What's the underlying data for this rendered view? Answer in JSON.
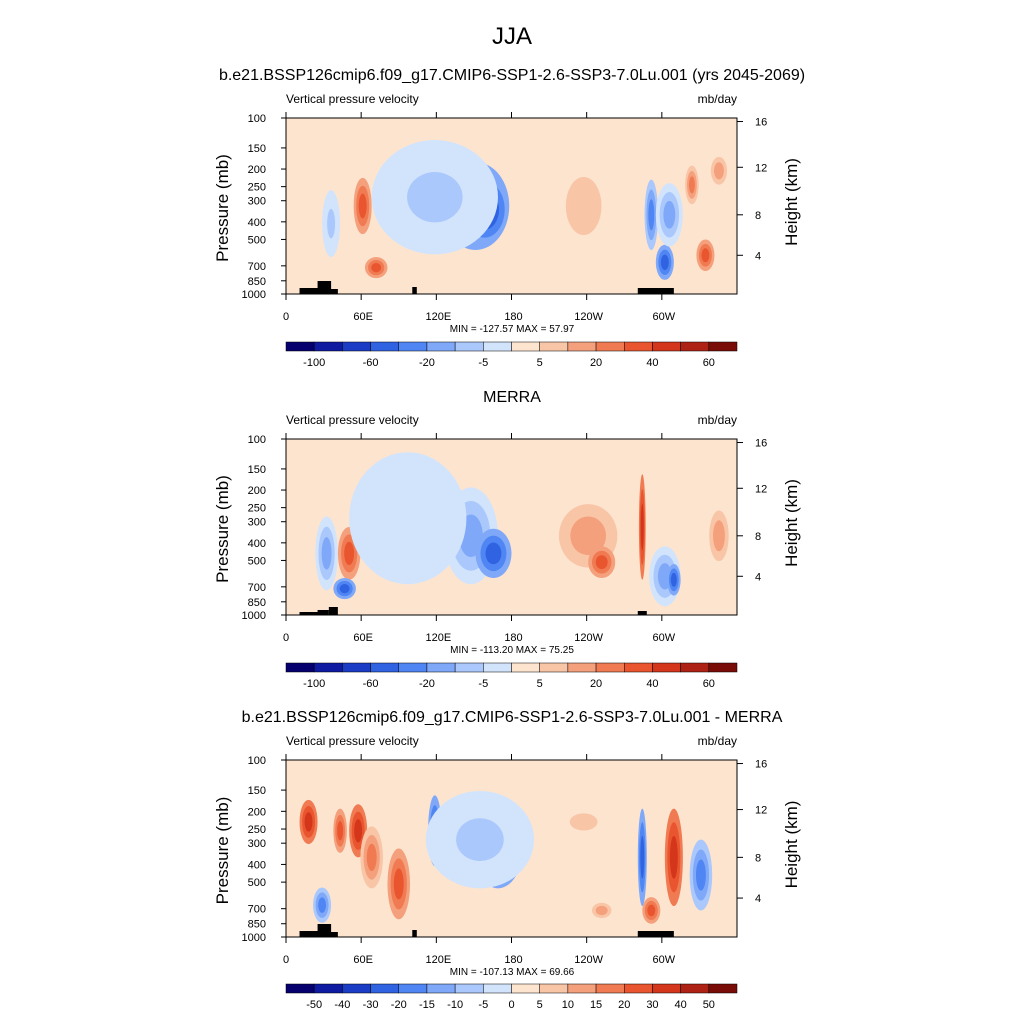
{
  "title": "JJA",
  "chart_data": [
    {
      "type": "heatmap",
      "title": "b.e21.BSSP126cmip6.f09_g17.CMIP6-SSP1-2.6-SSP3-7.0Lu.001 (yrs 2045-2069)",
      "left_label": "Vertical pressure velocity",
      "right_label": "mb/day",
      "ylabel": "Pressure (mb)",
      "ylabel_right": "Height (km)",
      "x_ticks": [
        "0",
        "60E",
        "120E",
        "180",
        "120W",
        "60W"
      ],
      "y_ticks": [
        "100",
        "150",
        "200",
        "250",
        "300",
        "400",
        "500",
        "700",
        "850",
        "1000"
      ],
      "y_ticks_right": [
        "16",
        "12",
        "8",
        "4"
      ],
      "stats": "MIN = -127.57  MAX =  57.97",
      "colorbar_labels": [
        "-100",
        "-60",
        "-20",
        "-5",
        "5",
        "20",
        "40",
        "60"
      ],
      "colorbar_colors": [
        "#05006e",
        "#0e1ba0",
        "#1b3cc4",
        "#2f63e2",
        "#4f86f3",
        "#7fa9f8",
        "#aac8fb",
        "#d2e4fc",
        "#fde4cf",
        "#f9c5a7",
        "#f5a07c",
        "#f07a52",
        "#e9552e",
        "#d4361b",
        "#ad2214",
        "#7a0c08"
      ],
      "features": [
        {
          "xf": 0.1,
          "yf": 0.6,
          "w": 0.04,
          "h": 0.38,
          "c": 6
        },
        {
          "xf": 0.17,
          "yf": 0.5,
          "w": 0.04,
          "h": 0.32,
          "c": 12
        },
        {
          "xf": 0.2,
          "yf": 0.85,
          "w": 0.05,
          "h": 0.12,
          "c": 12
        },
        {
          "xf": 0.3,
          "yf": 0.4,
          "w": 0.14,
          "h": 0.5,
          "c": 3
        },
        {
          "xf": 0.31,
          "yf": 0.35,
          "w": 0.08,
          "h": 0.28,
          "c": 2
        },
        {
          "xf": 0.42,
          "yf": 0.5,
          "w": 0.15,
          "h": 0.5,
          "c": 3
        },
        {
          "xf": 0.44,
          "yf": 0.52,
          "w": 0.09,
          "h": 0.32,
          "c": 2
        },
        {
          "xf": 0.33,
          "yf": 0.45,
          "w": 0.28,
          "h": 0.65,
          "c": 6
        },
        {
          "xf": 0.66,
          "yf": 0.55,
          "w": 0.12,
          "h": 0.58,
          "c": 12
        },
        {
          "xf": 0.66,
          "yf": 0.5,
          "w": 0.18,
          "h": 0.75,
          "c": 9
        },
        {
          "xf": 0.81,
          "yf": 0.55,
          "w": 0.03,
          "h": 0.4,
          "c": 4
        },
        {
          "xf": 0.84,
          "yf": 0.82,
          "w": 0.04,
          "h": 0.2,
          "c": 3
        },
        {
          "xf": 0.85,
          "yf": 0.55,
          "w": 0.06,
          "h": 0.36,
          "c": 5
        },
        {
          "xf": 0.9,
          "yf": 0.38,
          "w": 0.03,
          "h": 0.22,
          "c": 11
        },
        {
          "xf": 0.96,
          "yf": 0.3,
          "w": 0.05,
          "h": 0.22,
          "c": 10
        },
        {
          "xf": 0.93,
          "yf": 0.78,
          "w": 0.04,
          "h": 0.18,
          "c": 12
        }
      ]
    },
    {
      "type": "heatmap",
      "title": "MERRA",
      "left_label": "Vertical pressure velocity",
      "right_label": "mb/day",
      "ylabel": "Pressure (mb)",
      "ylabel_right": "Height (km)",
      "x_ticks": [
        "0",
        "60E",
        "120E",
        "180",
        "120W",
        "60W"
      ],
      "y_ticks": [
        "100",
        "150",
        "200",
        "250",
        "300",
        "400",
        "500",
        "700",
        "850",
        "1000"
      ],
      "y_ticks_right": [
        "16",
        "12",
        "8",
        "4"
      ],
      "stats": "MIN = -113.20  MAX =  75.25",
      "colorbar_labels": [
        "-100",
        "-60",
        "-20",
        "-5",
        "5",
        "20",
        "40",
        "60"
      ],
      "colorbar_colors": [
        "#05006e",
        "#0e1ba0",
        "#1b3cc4",
        "#2f63e2",
        "#4f86f3",
        "#7fa9f8",
        "#aac8fb",
        "#d2e4fc",
        "#fde4cf",
        "#f9c5a7",
        "#f5a07c",
        "#f07a52",
        "#e9552e",
        "#d4361b",
        "#ad2214",
        "#7a0c08"
      ],
      "features": [
        {
          "xf": 0.09,
          "yf": 0.65,
          "w": 0.05,
          "h": 0.42,
          "c": 5
        },
        {
          "xf": 0.14,
          "yf": 0.65,
          "w": 0.05,
          "h": 0.3,
          "c": 12
        },
        {
          "xf": 0.13,
          "yf": 0.85,
          "w": 0.05,
          "h": 0.12,
          "c": 3
        },
        {
          "xf": 0.28,
          "yf": 0.45,
          "w": 0.18,
          "h": 0.55,
          "c": 6
        },
        {
          "xf": 0.22,
          "yf": 0.4,
          "w": 0.08,
          "h": 0.3,
          "c": 3
        },
        {
          "xf": 0.41,
          "yf": 0.55,
          "w": 0.12,
          "h": 0.55,
          "c": 5
        },
        {
          "xf": 0.46,
          "yf": 0.65,
          "w": 0.08,
          "h": 0.28,
          "c": 3
        },
        {
          "xf": 0.27,
          "yf": 0.45,
          "w": 0.26,
          "h": 0.75,
          "c": 7
        },
        {
          "xf": 0.67,
          "yf": 0.55,
          "w": 0.18,
          "h": 0.5,
          "c": 10
        },
        {
          "xf": 0.7,
          "yf": 0.7,
          "w": 0.06,
          "h": 0.18,
          "c": 12
        },
        {
          "xf": 0.79,
          "yf": 0.5,
          "w": 0.015,
          "h": 0.6,
          "c": 13
        },
        {
          "xf": 0.84,
          "yf": 0.78,
          "w": 0.07,
          "h": 0.34,
          "c": 5
        },
        {
          "xf": 0.86,
          "yf": 0.8,
          "w": 0.03,
          "h": 0.18,
          "c": 3
        },
        {
          "xf": 0.96,
          "yf": 0.55,
          "w": 0.06,
          "h": 0.4,
          "c": 10
        }
      ]
    },
    {
      "type": "heatmap",
      "title": "b.e21.BSSP126cmip6.f09_g17.CMIP6-SSP1-2.6-SSP3-7.0Lu.001 - MERRA",
      "left_label": "Vertical pressure velocity",
      "right_label": "mb/day",
      "ylabel": "Pressure (mb)",
      "ylabel_right": "Height (km)",
      "x_ticks": [
        "0",
        "60E",
        "120E",
        "180",
        "120W",
        "60W"
      ],
      "y_ticks": [
        "100",
        "150",
        "200",
        "250",
        "300",
        "400",
        "500",
        "700",
        "850",
        "1000"
      ],
      "y_ticks_right": [
        "16",
        "12",
        "8",
        "4"
      ],
      "stats": "MIN = -107.13  MAX =  69.66",
      "colorbar_labels": [
        "-50",
        "-40",
        "-30",
        "-20",
        "-15",
        "-10",
        "-5",
        "0",
        "5",
        "10",
        "15",
        "20",
        "30",
        "40",
        "50"
      ],
      "colorbar_colors": [
        "#05006e",
        "#0e1ba0",
        "#1b3cc4",
        "#2f63e2",
        "#4f86f3",
        "#7fa9f8",
        "#aac8fb",
        "#d2e4fc",
        "#fde4cf",
        "#f9c5a7",
        "#f5a07c",
        "#f07a52",
        "#e9552e",
        "#d4361b",
        "#ad2214",
        "#7a0c08"
      ],
      "features": [
        {
          "xf": 0.05,
          "yf": 0.35,
          "w": 0.04,
          "h": 0.25,
          "c": 13
        },
        {
          "xf": 0.08,
          "yf": 0.82,
          "w": 0.04,
          "h": 0.2,
          "c": 4
        },
        {
          "xf": 0.12,
          "yf": 0.4,
          "w": 0.03,
          "h": 0.25,
          "c": 12
        },
        {
          "xf": 0.16,
          "yf": 0.4,
          "w": 0.04,
          "h": 0.3,
          "c": 13
        },
        {
          "xf": 0.19,
          "yf": 0.55,
          "w": 0.05,
          "h": 0.35,
          "c": 11
        },
        {
          "xf": 0.25,
          "yf": 0.7,
          "w": 0.05,
          "h": 0.4,
          "c": 12
        },
        {
          "xf": 0.33,
          "yf": 0.4,
          "w": 0.03,
          "h": 0.4,
          "c": 3
        },
        {
          "xf": 0.4,
          "yf": 0.4,
          "w": 0.04,
          "h": 0.35,
          "c": 3
        },
        {
          "xf": 0.47,
          "yf": 0.5,
          "w": 0.11,
          "h": 0.45,
          "c": 3
        },
        {
          "xf": 0.43,
          "yf": 0.45,
          "w": 0.24,
          "h": 0.55,
          "c": 6
        },
        {
          "xf": 0.66,
          "yf": 0.35,
          "w": 0.14,
          "h": 0.22,
          "c": 9
        },
        {
          "xf": 0.79,
          "yf": 0.55,
          "w": 0.02,
          "h": 0.55,
          "c": 3
        },
        {
          "xf": 0.81,
          "yf": 0.85,
          "w": 0.04,
          "h": 0.15,
          "c": 12
        },
        {
          "xf": 0.86,
          "yf": 0.55,
          "w": 0.04,
          "h": 0.55,
          "c": 13
        },
        {
          "xf": 0.92,
          "yf": 0.65,
          "w": 0.05,
          "h": 0.4,
          "c": 4
        },
        {
          "xf": 0.7,
          "yf": 0.85,
          "w": 0.06,
          "h": 0.12,
          "c": 10
        }
      ]
    }
  ]
}
